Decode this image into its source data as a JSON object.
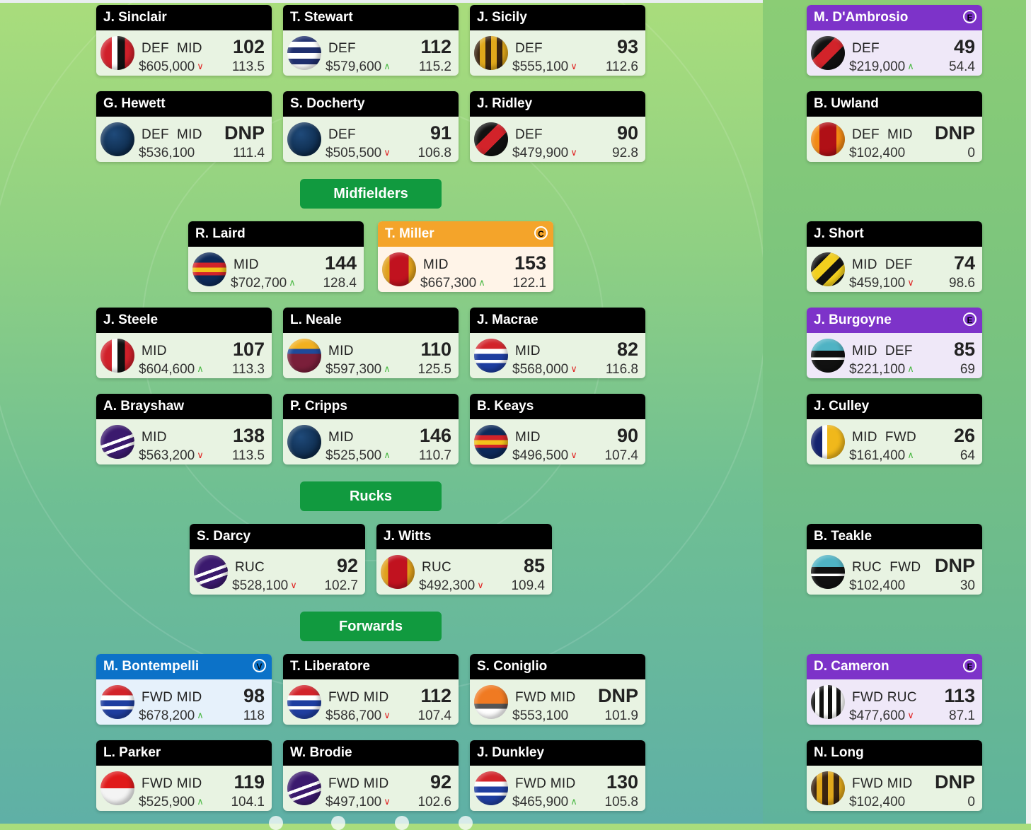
{
  "sections": {
    "midfielders": "Midfielders",
    "rucks": "Rucks",
    "forwards": "Forwards"
  },
  "badges": {
    "captain": "C",
    "vice": "V",
    "emergency": "E"
  },
  "players": [
    {
      "name": "J. Sinclair",
      "pos": "DEF  MID",
      "price": "$605,000",
      "trend": "down",
      "score": "102",
      "avg": "113.5",
      "jersey": "stripes-red-black",
      "role": "normal"
    },
    {
      "name": "T. Stewart",
      "pos": "DEF",
      "price": "$579,600",
      "trend": "up",
      "score": "112",
      "avg": "115.2",
      "jersey": "hoops-navy-white",
      "role": "normal"
    },
    {
      "name": "J. Sicily",
      "pos": "DEF",
      "price": "$555,100",
      "trend": "down",
      "score": "93",
      "avg": "112.6",
      "jersey": "stripes-brown-gold",
      "role": "normal"
    },
    {
      "name": "G. Hewett",
      "pos": "DEF  MID",
      "price": "$536,100",
      "trend": "none",
      "score": "DNP",
      "avg": "111.4",
      "jersey": "navy",
      "role": "normal"
    },
    {
      "name": "S. Docherty",
      "pos": "DEF",
      "price": "$505,500",
      "trend": "down",
      "score": "91",
      "avg": "106.8",
      "jersey": "navy",
      "role": "normal"
    },
    {
      "name": "J. Ridley",
      "pos": "DEF",
      "price": "$479,900",
      "trend": "down",
      "score": "90",
      "avg": "92.8",
      "jersey": "sash-black-red",
      "role": "normal"
    },
    {
      "name": "R. Laird",
      "pos": "MID",
      "price": "$702,700",
      "trend": "up",
      "score": "144",
      "avg": "128.4",
      "jersey": "hoops-navy-red-gold",
      "role": "normal"
    },
    {
      "name": "T. Miller",
      "pos": "MID",
      "price": "$667,300",
      "trend": "up",
      "score": "153",
      "avg": "122.1",
      "jersey": "red-gold",
      "role": "captain"
    },
    {
      "name": "J. Steele",
      "pos": "MID",
      "price": "$604,600",
      "trend": "up",
      "score": "107",
      "avg": "113.3",
      "jersey": "stripes-red-black",
      "role": "normal"
    },
    {
      "name": "L. Neale",
      "pos": "MID",
      "price": "$597,300",
      "trend": "up",
      "score": "110",
      "avg": "125.5",
      "jersey": "hoops-maroon-blue",
      "role": "normal"
    },
    {
      "name": "J. Macrae",
      "pos": "MID",
      "price": "$568,000",
      "trend": "down",
      "score": "82",
      "avg": "116.8",
      "jersey": "hoops-red-white-blue",
      "role": "normal"
    },
    {
      "name": "A. Brayshaw",
      "pos": "MID",
      "price": "$563,200",
      "trend": "down",
      "score": "138",
      "avg": "113.5",
      "jersey": "chevron-purple",
      "role": "normal"
    },
    {
      "name": "P. Cripps",
      "pos": "MID",
      "price": "$525,500",
      "trend": "up",
      "score": "146",
      "avg": "110.7",
      "jersey": "navy",
      "role": "normal"
    },
    {
      "name": "B. Keays",
      "pos": "MID",
      "price": "$496,500",
      "trend": "down",
      "score": "90",
      "avg": "107.4",
      "jersey": "hoops-navy-red-gold",
      "role": "normal"
    },
    {
      "name": "S. Darcy",
      "pos": "RUC",
      "price": "$528,100",
      "trend": "down",
      "score": "92",
      "avg": "102.7",
      "jersey": "chevron-purple",
      "role": "normal"
    },
    {
      "name": "J. Witts",
      "pos": "RUC",
      "price": "$492,300",
      "trend": "down",
      "score": "85",
      "avg": "109.4",
      "jersey": "red-gold",
      "role": "normal"
    },
    {
      "name": "M. Bontempelli",
      "pos": "FWD MID",
      "price": "$678,200",
      "trend": "up",
      "score": "98",
      "avg": "118",
      "jersey": "hoops-red-white-blue",
      "role": "vice"
    },
    {
      "name": "T. Liberatore",
      "pos": "FWD MID",
      "price": "$586,700",
      "trend": "down",
      "score": "112",
      "avg": "107.4",
      "jersey": "hoops-red-white-blue",
      "role": "normal"
    },
    {
      "name": "S. Coniglio",
      "pos": "FWD MID",
      "price": "$553,100",
      "trend": "none",
      "score": "DNP",
      "avg": "101.9",
      "jersey": "orange-charcoal",
      "role": "normal"
    },
    {
      "name": "L. Parker",
      "pos": "FWD MID",
      "price": "$525,900",
      "trend": "up",
      "score": "119",
      "avg": "104.1",
      "jersey": "red-white",
      "role": "normal"
    },
    {
      "name": "W. Brodie",
      "pos": "FWD MID",
      "price": "$497,100",
      "trend": "down",
      "score": "92",
      "avg": "102.6",
      "jersey": "chevron-purple",
      "role": "normal"
    },
    {
      "name": "J. Dunkley",
      "pos": "FWD MID",
      "price": "$465,900",
      "trend": "up",
      "score": "130",
      "avg": "105.8",
      "jersey": "hoops-red-white-blue",
      "role": "normal"
    }
  ],
  "bench": [
    {
      "name": "M. D'Ambrosio",
      "pos": "DEF",
      "price": "$219,000",
      "trend": "up",
      "score": "49",
      "avg": "54.4",
      "jersey": "sash-black-red",
      "role": "emergency"
    },
    {
      "name": "B. Uwland",
      "pos": "DEF  MID",
      "price": "$102,400",
      "trend": "none",
      "score": "DNP",
      "avg": "0",
      "jersey": "orange-red",
      "role": "normal"
    },
    {
      "name": "J. Short",
      "pos": "MID  DEF",
      "price": "$459,100",
      "trend": "down",
      "score": "74",
      "avg": "98.6",
      "jersey": "sash-yellow-black",
      "role": "normal"
    },
    {
      "name": "J. Burgoyne",
      "pos": "MID  DEF",
      "price": "$221,100",
      "trend": "up",
      "score": "85",
      "avg": "69",
      "jersey": "chevron-teal-black",
      "role": "emergency"
    },
    {
      "name": "J. Culley",
      "pos": "MID  FWD",
      "price": "$161,400",
      "trend": "up",
      "score": "26",
      "avg": "64",
      "jersey": "stripes-navy-white-gold",
      "role": "normal"
    },
    {
      "name": "B. Teakle",
      "pos": "RUC  FWD",
      "price": "$102,400",
      "trend": "none",
      "score": "DNP",
      "avg": "30",
      "jersey": "chevron-teal-black",
      "role": "normal"
    },
    {
      "name": "D. Cameron",
      "pos": "FWD RUC",
      "price": "$477,600",
      "trend": "down",
      "score": "113",
      "avg": "87.1",
      "jersey": "stripes-black-white",
      "role": "emergency"
    },
    {
      "name": "N. Long",
      "pos": "FWD MID",
      "price": "$102,400",
      "trend": "none",
      "score": "DNP",
      "avg": "0",
      "jersey": "stripes-brown-gold",
      "role": "normal"
    }
  ]
}
